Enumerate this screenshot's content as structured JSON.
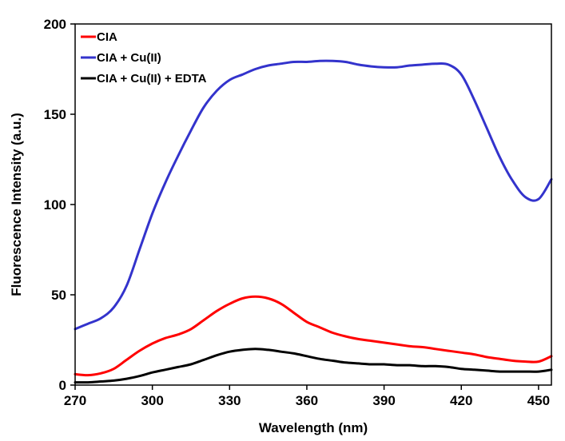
{
  "chart_data": {
    "type": "line",
    "title": "",
    "xlabel": "Wavelength (nm)",
    "ylabel": "Fluorescence Intensity (a.u.)",
    "xlim": [
      270,
      455
    ],
    "ylim": [
      0,
      200
    ],
    "xticks": [
      270,
      300,
      330,
      360,
      390,
      420,
      450
    ],
    "yticks": [
      0,
      50,
      100,
      150,
      200
    ],
    "grid": false,
    "legend": "top-left",
    "series": [
      {
        "name": "CIA",
        "color": "#ff0000",
        "x": [
          270,
          275,
          280,
          285,
          290,
          295,
          300,
          305,
          310,
          315,
          320,
          325,
          330,
          335,
          340,
          345,
          350,
          355,
          360,
          365,
          370,
          375,
          380,
          385,
          390,
          395,
          400,
          405,
          410,
          415,
          420,
          425,
          430,
          435,
          440,
          445,
          450,
          455
        ],
        "y": [
          6,
          5.5,
          6.5,
          9,
          14,
          19,
          23,
          26,
          28,
          31,
          36,
          41,
          45,
          48,
          49,
          48,
          45,
          40,
          35,
          32,
          29,
          27,
          25.5,
          24.5,
          23.5,
          22.5,
          21.5,
          21,
          20,
          19,
          18,
          17,
          15.5,
          14.5,
          13.5,
          13,
          13,
          16
        ]
      },
      {
        "name": "CIA + Cu(II)",
        "color": "#3333cc",
        "x": [
          270,
          275,
          280,
          285,
          290,
          295,
          300,
          305,
          310,
          315,
          320,
          325,
          330,
          335,
          340,
          345,
          350,
          355,
          360,
          365,
          370,
          375,
          380,
          385,
          390,
          395,
          400,
          405,
          410,
          415,
          420,
          425,
          430,
          435,
          440,
          445,
          450,
          455
        ],
        "y": [
          31,
          34,
          37,
          43,
          55,
          75,
          95,
          112,
          127,
          141,
          154,
          163,
          169,
          172,
          175,
          177,
          178,
          179,
          179,
          179.5,
          179.5,
          179,
          177.5,
          176.5,
          176,
          176,
          177,
          177.5,
          178,
          177.5,
          172,
          158,
          142,
          126,
          113,
          104,
          103,
          114
        ]
      },
      {
        "name": "CIA + Cu(II) + EDTA",
        "color": "#000000",
        "x": [
          270,
          275,
          280,
          285,
          290,
          295,
          300,
          305,
          310,
          315,
          320,
          325,
          330,
          335,
          340,
          345,
          350,
          355,
          360,
          365,
          370,
          375,
          380,
          385,
          390,
          395,
          400,
          405,
          410,
          415,
          420,
          425,
          430,
          435,
          440,
          445,
          450,
          455
        ],
        "y": [
          1.5,
          1.5,
          2,
          2.5,
          3.5,
          5,
          7,
          8.5,
          10,
          11.5,
          14,
          16.5,
          18.5,
          19.5,
          20,
          19.5,
          18.5,
          17.5,
          16,
          14.5,
          13.5,
          12.5,
          12,
          11.5,
          11.5,
          11,
          11,
          10.5,
          10.5,
          10,
          9,
          8.5,
          8,
          7.5,
          7.5,
          7.5,
          7.5,
          8.5
        ]
      }
    ]
  }
}
